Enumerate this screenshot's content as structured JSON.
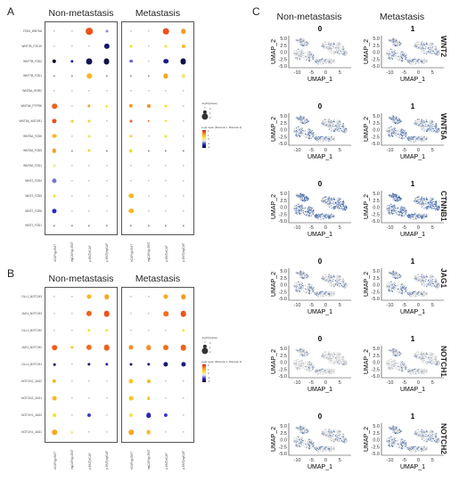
{
  "panels": {
    "a": "A",
    "b": "B",
    "c": "C"
  },
  "groups": {
    "non_metastasis": "Non-metastasis",
    "metastasis": "Metastasis"
  },
  "legend": {
    "size_title": "-log10(pvalue)",
    "size_ticks": [
      "0",
      "1",
      "2"
    ],
    "color_title": "Log2 mean (Molecule 1, Molecule 2)",
    "color_ticks": [
      "2",
      "1",
      "0",
      "-1",
      "-2"
    ]
  },
  "chart_data": [
    {
      "type": "scatter",
      "subtype": "dotplot",
      "panel": "A",
      "columns": [
        "eCAFs|p-EMT",
        "myCAFs|p-EMT",
        "p-EMT|eCAF",
        "p-EMT|myCAF"
      ],
      "groups": [
        "Non-metastasis",
        "Metastasis"
      ],
      "rows": [
        "FZD4_WNT5A",
        "WNT7B_FZD10",
        "WNT7B_FZD4",
        "WNT7B_FZD1",
        "WNT5A_ROR2",
        "WNT5A_PTPRK",
        "WNT5A_ANTXR1",
        "WNT5A_FZD6",
        "WNT5A_FZD5",
        "WNT5A_FZD1",
        "WNT2_FZD4",
        "WNT2_FZD5",
        "WNT2_FZD6",
        "WNT2_FZD1"
      ],
      "values_nonmet": [
        [
          [
            0,
            0
          ],
          [
            0,
            0
          ],
          [
            1.8,
            1.6
          ],
          [
            0.5,
            -0.5
          ]
        ],
        [
          [
            0,
            0
          ],
          [
            0,
            0
          ],
          [
            0,
            0
          ],
          [
            1.4,
            -1.6
          ]
        ],
        [
          [
            0.9,
            -2
          ],
          [
            0.6,
            -1.2
          ],
          [
            1.6,
            -1.7
          ],
          [
            1.6,
            -1.8
          ]
        ],
        [
          [
            0,
            0
          ],
          [
            0,
            0
          ],
          [
            1.2,
            0.9
          ],
          [
            0,
            0
          ]
        ],
        [
          [
            0,
            0
          ],
          [
            0,
            0
          ],
          [
            0,
            0
          ],
          [
            0,
            0
          ]
        ],
        [
          [
            1.2,
            1.5
          ],
          [
            0,
            0
          ],
          [
            0.6,
            1.1
          ],
          [
            0.4,
            0.6
          ]
        ],
        [
          [
            1.1,
            1.6
          ],
          [
            0.5,
            0.8
          ],
          [
            0.5,
            0.7
          ],
          [
            0,
            0
          ]
        ],
        [
          [
            1.0,
            0.9
          ],
          [
            0,
            0
          ],
          [
            0.5,
            0.5
          ],
          [
            0,
            0
          ]
        ],
        [
          [
            0.9,
            1.1
          ],
          [
            0,
            0
          ],
          [
            0.5,
            0.7
          ],
          [
            0,
            0
          ]
        ],
        [
          [
            0.5,
            0.3
          ],
          [
            0,
            0
          ],
          [
            0,
            0
          ],
          [
            0,
            0
          ]
        ],
        [
          [
            1.1,
            -0.6
          ],
          [
            0,
            0
          ],
          [
            0,
            0
          ],
          [
            0,
            0
          ]
        ],
        [
          [
            0.5,
            0.6
          ],
          [
            0,
            0
          ],
          [
            0,
            0
          ],
          [
            0,
            0
          ]
        ],
        [
          [
            1.1,
            -1.0
          ],
          [
            0,
            0
          ],
          [
            0,
            0
          ],
          [
            0,
            0
          ]
        ],
        [
          [
            0,
            0
          ],
          [
            0,
            0
          ],
          [
            0,
            0
          ],
          [
            0,
            0
          ]
        ]
      ],
      "values_met": [
        [
          [
            0,
            0
          ],
          [
            0,
            0
          ],
          [
            1.5,
            1.6
          ],
          [
            1.2,
            1.1
          ]
        ],
        [
          [
            0.5,
            0.6
          ],
          [
            0,
            0
          ],
          [
            0.5,
            0.6
          ],
          [
            0.8,
            0.9
          ]
        ],
        [
          [
            0.7,
            -0.7
          ],
          [
            0,
            0
          ],
          [
            1.2,
            -1.4
          ],
          [
            1.6,
            -1.8
          ]
        ],
        [
          [
            0,
            0
          ],
          [
            0,
            0
          ],
          [
            1.1,
            1.0
          ],
          [
            0.9,
            0.3
          ]
        ],
        [
          [
            0,
            0
          ],
          [
            0,
            0
          ],
          [
            0,
            0
          ],
          [
            0,
            0
          ]
        ],
        [
          [
            0.9,
            1.1
          ],
          [
            0.8,
            1.2
          ],
          [
            0.5,
            0.6
          ],
          [
            0,
            0
          ]
        ],
        [
          [
            0.5,
            1.5
          ],
          [
            0.4,
            1.5
          ],
          [
            0.4,
            0.6
          ],
          [
            0,
            0
          ]
        ],
        [
          [
            0.6,
            0.7
          ],
          [
            0,
            0
          ],
          [
            0.5,
            0.6
          ],
          [
            0,
            0
          ]
        ],
        [
          [
            0.6,
            0.7
          ],
          [
            0,
            0
          ],
          [
            0,
            0
          ],
          [
            0,
            0
          ]
        ],
        [
          [
            0,
            0
          ],
          [
            0,
            0
          ],
          [
            0,
            0
          ],
          [
            0,
            0
          ]
        ],
        [
          [
            0,
            0
          ],
          [
            0,
            0
          ],
          [
            0,
            0
          ],
          [
            0,
            0
          ]
        ],
        [
          [
            1.2,
            0.9
          ],
          [
            0,
            0
          ],
          [
            0,
            0
          ],
          [
            0,
            0
          ]
        ],
        [
          [
            1.2,
            0.9
          ],
          [
            0,
            0
          ],
          [
            0,
            0
          ],
          [
            0,
            0
          ]
        ],
        [
          [
            0,
            0
          ],
          [
            0,
            0
          ],
          [
            0,
            0
          ],
          [
            0,
            0
          ]
        ]
      ]
    },
    {
      "type": "scatter",
      "subtype": "dotplot",
      "panel": "B",
      "columns": [
        "eCAFs|p-EMT",
        "myCAFs|p-EMT",
        "p-EMT|eCAF",
        "p-EMT|myCAF"
      ],
      "groups": [
        "Non-metastasis",
        "Metastasis"
      ],
      "rows": [
        "DLL1_NOTCH3",
        "JAG1_NOTCH3",
        "DLL1_NOTCH2",
        "JAG1_NOTCH2",
        "DLL1_NOTCH1",
        "NOTCH2_JAG2",
        "NOTCH2_JAG1",
        "NOTCH1_JAG2",
        "NOTCH1_JAG1"
      ],
      "values_nonmet": [
        [
          [
            0,
            0
          ],
          [
            0,
            0
          ],
          [
            1.1,
            0.9
          ],
          [
            1.2,
            1.0
          ]
        ],
        [
          [
            0,
            0
          ],
          [
            0,
            0
          ],
          [
            1.4,
            1.5
          ],
          [
            1.5,
            1.6
          ]
        ],
        [
          [
            0,
            0
          ],
          [
            0,
            0
          ],
          [
            0.6,
            0.6
          ],
          [
            0.6,
            0.5
          ]
        ],
        [
          [
            1.2,
            1.5
          ],
          [
            0.6,
            0.8
          ],
          [
            1.4,
            1.4
          ],
          [
            1.5,
            1.5
          ]
        ],
        [
          [
            0.4,
            -1.6
          ],
          [
            0,
            0
          ],
          [
            0.6,
            -1.5
          ],
          [
            0.6,
            -1.2
          ]
        ],
        [
          [
            0.9,
            0.9
          ],
          [
            0,
            0
          ],
          [
            0,
            0
          ],
          [
            0,
            0
          ]
        ],
        [
          [
            1.0,
            0.9
          ],
          [
            0,
            0
          ],
          [
            0,
            0
          ],
          [
            0,
            0
          ]
        ],
        [
          [
            0.7,
            0.6
          ],
          [
            0,
            0
          ],
          [
            0.8,
            -0.9
          ],
          [
            0,
            0
          ]
        ],
        [
          [
            1.2,
            1.0
          ],
          [
            0.4,
            0.5
          ],
          [
            0,
            0
          ],
          [
            0,
            0
          ]
        ]
      ],
      "values_met": [
        [
          [
            0,
            0
          ],
          [
            0,
            0
          ],
          [
            1.1,
            1.0
          ],
          [
            1.2,
            1.1
          ]
        ],
        [
          [
            0,
            0
          ],
          [
            0,
            0
          ],
          [
            1.2,
            1.4
          ],
          [
            1.5,
            1.6
          ]
        ],
        [
          [
            0,
            0
          ],
          [
            0,
            0
          ],
          [
            0,
            0
          ],
          [
            0.6,
            0.5
          ]
        ],
        [
          [
            1.1,
            1.2
          ],
          [
            1.2,
            1.2
          ],
          [
            1.3,
            1.4
          ],
          [
            1.5,
            1.5
          ]
        ],
        [
          [
            0.5,
            -1.5
          ],
          [
            0.6,
            -1.5
          ],
          [
            1.1,
            -1.6
          ],
          [
            1.1,
            -1.5
          ]
        ],
        [
          [
            1.1,
            0.8
          ],
          [
            0.8,
            0.9
          ],
          [
            0,
            0
          ],
          [
            0,
            0
          ]
        ],
        [
          [
            1.0,
            0.8
          ],
          [
            0.7,
            0.8
          ],
          [
            0,
            0
          ],
          [
            0,
            0
          ]
        ],
        [
          [
            0.8,
            0.5
          ],
          [
            1.2,
            -1.1
          ],
          [
            0.8,
            -0.9
          ],
          [
            0,
            0
          ]
        ],
        [
          [
            1.2,
            1.0
          ],
          [
            1.0,
            0.9
          ],
          [
            0,
            0
          ],
          [
            0,
            0
          ]
        ]
      ]
    },
    {
      "type": "scatter",
      "subtype": "umap_feature_plots",
      "panel": "C",
      "col_headers": [
        "Non-metastasis",
        "Metastasis"
      ],
      "facet_titles": [
        "0",
        "1"
      ],
      "genes": [
        "WNT2",
        "WNT5A",
        "CTNNB1",
        "JAG1",
        "NOTCH1",
        "NOTCH2"
      ],
      "xlabel": "UMAP_1",
      "ylabel": "UMAP_2",
      "x_ticks": [
        "-10",
        "-5",
        "0",
        "5"
      ],
      "y_ticks": [
        "5.0",
        "2.5",
        "0.0",
        "-2.5",
        "-5.0"
      ],
      "xlim": [
        -13,
        9
      ],
      "ylim": [
        -5.5,
        6
      ],
      "expression_level": {
        "WNT2": [
          0.25,
          0.35
        ],
        "WNT5A": [
          0.5,
          0.6
        ],
        "CTNNB1": [
          0.9,
          0.95
        ],
        "JAG1": [
          0.35,
          0.4
        ],
        "NOTCH1": [
          0.15,
          0.2
        ],
        "NOTCH2": [
          0.35,
          0.45
        ]
      }
    }
  ]
}
